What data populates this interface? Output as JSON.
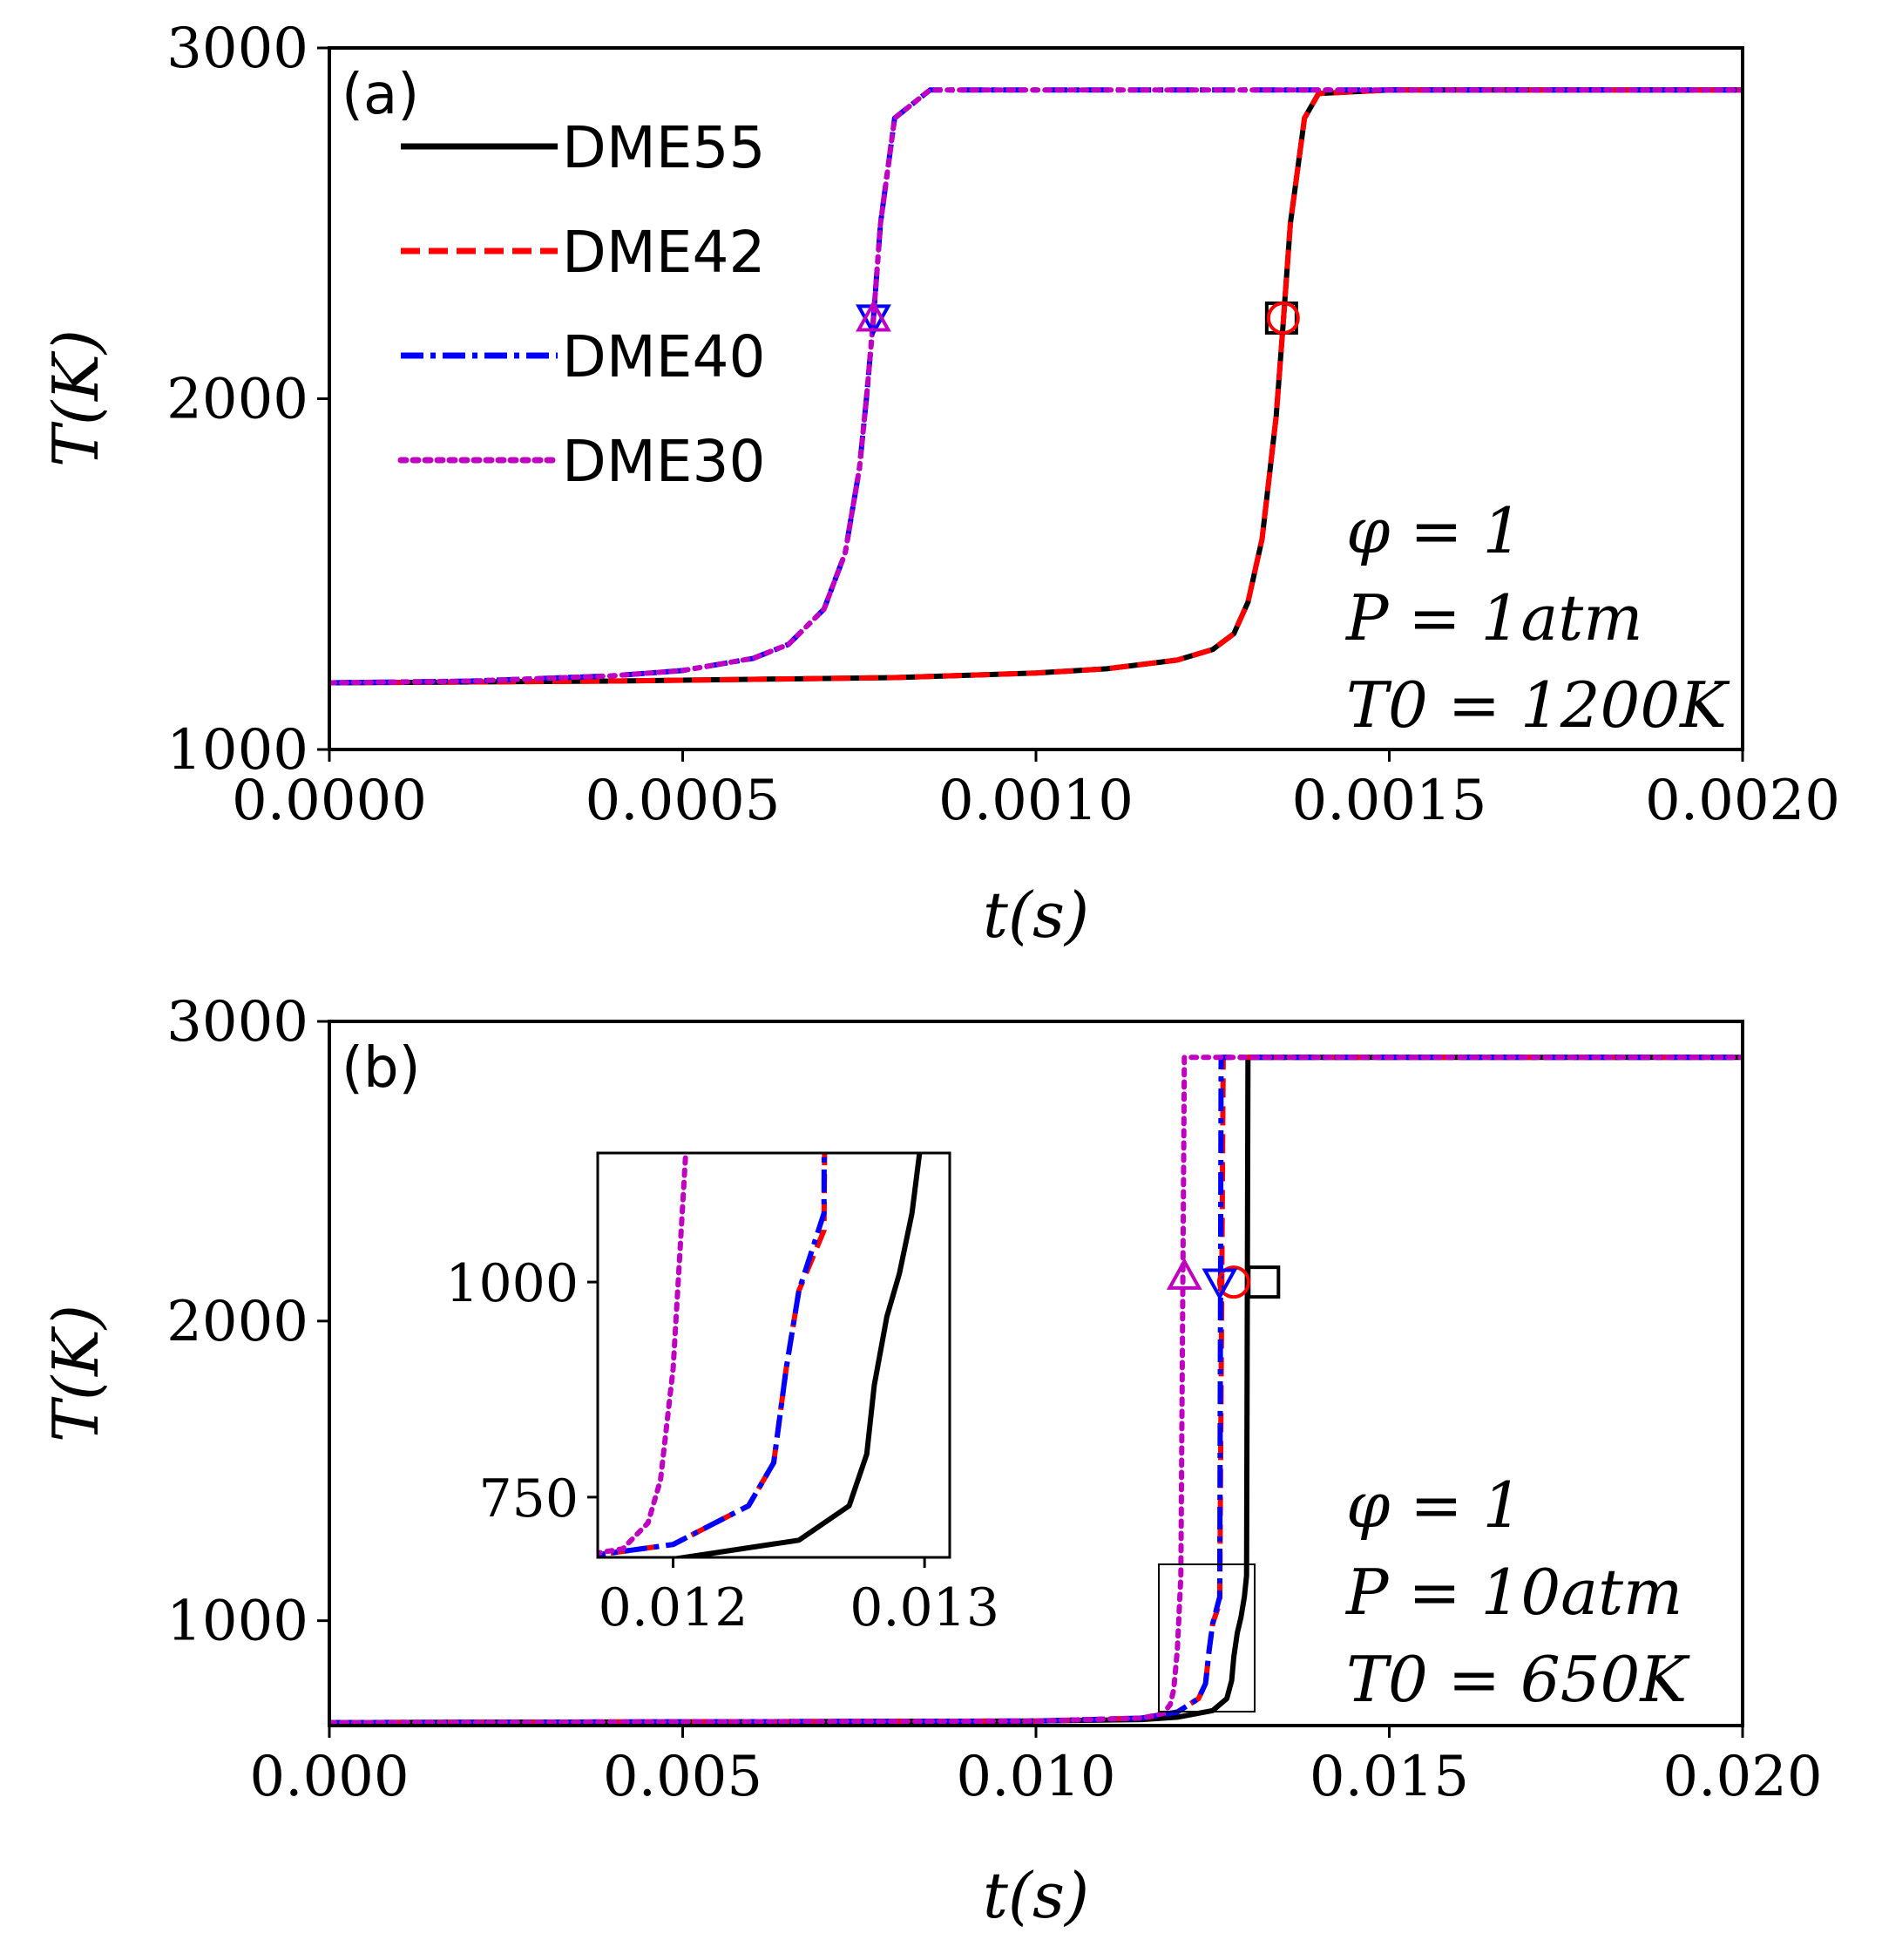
{
  "chart_data": [
    {
      "panel": "(a)",
      "type": "line",
      "xlabel": "t(s)",
      "ylabel": "T(K)",
      "xlim": [
        0,
        0.002
      ],
      "ylim": [
        1000,
        3000
      ],
      "xticks": [
        "0.0000",
        "0.0005",
        "0.0010",
        "0.0015",
        "0.0020"
      ],
      "yticks": [
        "1000",
        "2000",
        "3000"
      ],
      "legend": "top-left",
      "conditions": [
        "φ = 1",
        "P = 1atm",
        "T0 = 1200K"
      ],
      "series": [
        {
          "name": "DME55",
          "color": "#000000",
          "style": "solid",
          "x": [
            0,
            0.0004,
            0.0008,
            0.001,
            0.0011,
            0.0012,
            0.00125,
            0.00128,
            0.0013,
            0.00132,
            0.00134,
            0.00135,
            0.00136,
            0.00138,
            0.0014,
            0.0015,
            0.002
          ],
          "y": [
            1190,
            1195,
            1205,
            1218,
            1230,
            1255,
            1285,
            1330,
            1420,
            1600,
            1950,
            2220,
            2500,
            2800,
            2870,
            2880,
            2880
          ],
          "marker": {
            "symbol": "square",
            "x": 0.00135,
            "y": 2230
          }
        },
        {
          "name": "DME42",
          "color": "#ff0000",
          "style": "dashed",
          "x": [
            0,
            0.0004,
            0.0008,
            0.001,
            0.0011,
            0.0012,
            0.00125,
            0.00128,
            0.0013,
            0.00132,
            0.00134,
            0.00135,
            0.00136,
            0.00138,
            0.0014,
            0.0015,
            0.002
          ],
          "y": [
            1190,
            1195,
            1205,
            1218,
            1230,
            1255,
            1285,
            1330,
            1420,
            1600,
            1950,
            2220,
            2500,
            2800,
            2870,
            2880,
            2880
          ],
          "marker": {
            "symbol": "circle",
            "x": 0.00135,
            "y": 2230
          }
        },
        {
          "name": "DME40",
          "color": "#0000ff",
          "style": "dashdot",
          "x": [
            0,
            0.0002,
            0.0004,
            0.0005,
            0.0006,
            0.00065,
            0.0007,
            0.00073,
            0.00075,
            0.00076,
            0.00077,
            0.00078,
            0.0008,
            0.00085,
            0.001,
            0.002
          ],
          "y": [
            1190,
            1195,
            1210,
            1225,
            1260,
            1300,
            1400,
            1560,
            1800,
            2000,
            2230,
            2500,
            2800,
            2880,
            2880,
            2880
          ],
          "marker": {
            "symbol": "triangle-down",
            "x": 0.00077,
            "y": 2230
          }
        },
        {
          "name": "DME30",
          "color": "#c000c0",
          "style": "dotted",
          "x": [
            0,
            0.0002,
            0.0004,
            0.0005,
            0.0006,
            0.00065,
            0.0007,
            0.00073,
            0.00075,
            0.00076,
            0.00077,
            0.00078,
            0.0008,
            0.00085,
            0.001,
            0.002
          ],
          "y": [
            1190,
            1195,
            1210,
            1225,
            1260,
            1300,
            1400,
            1560,
            1800,
            2000,
            2230,
            2500,
            2800,
            2880,
            2880,
            2880
          ],
          "marker": {
            "symbol": "triangle-up",
            "x": 0.00077,
            "y": 2230
          }
        }
      ]
    },
    {
      "panel": "(b)",
      "type": "line",
      "xlabel": "t(s)",
      "ylabel": "T(K)",
      "xlim": [
        0,
        0.02
      ],
      "ylim": [
        650,
        3000
      ],
      "xticks": [
        "0.000",
        "0.005",
        "0.010",
        "0.015",
        "0.020"
      ],
      "yticks": [
        "1000",
        "2000",
        "3000"
      ],
      "conditions": [
        "φ = 1",
        "P = 10atm",
        "T0 = 650K"
      ],
      "series": [
        {
          "name": "DME55",
          "color": "#000000",
          "style": "solid",
          "x": [
            0,
            0.01,
            0.0115,
            0.012,
            0.0125,
            0.0127,
            0.01277,
            0.0128,
            0.01285,
            0.0129,
            0.01295,
            0.01298,
            0.013,
            0.02
          ],
          "y": [
            660,
            665,
            670,
            678,
            700,
            740,
            800,
            880,
            960,
            1010,
            1080,
            1150,
            2880,
            2880
          ],
          "marker": {
            "symbol": "square",
            "x": 0.013,
            "y": 2130
          }
        },
        {
          "name": "DME42",
          "color": "#ff0000",
          "style": "dashed",
          "x": [
            0,
            0.01,
            0.0115,
            0.012,
            0.0123,
            0.0124,
            0.01245,
            0.0125,
            0.0126,
            0.01265,
            0.02
          ],
          "y": [
            660,
            665,
            675,
            695,
            740,
            790,
            900,
            990,
            1060,
            2880,
            2880
          ],
          "marker": {
            "symbol": "circle",
            "x": 0.01265,
            "y": 2130
          }
        },
        {
          "name": "DME40",
          "color": "#0000ff",
          "style": "dashdot",
          "x": [
            0,
            0.01,
            0.0115,
            0.012,
            0.0123,
            0.0124,
            0.01245,
            0.0125,
            0.0126,
            0.01262,
            0.02
          ],
          "y": [
            660,
            665,
            675,
            695,
            740,
            790,
            900,
            990,
            1080,
            2880,
            2880
          ],
          "marker": {
            "symbol": "triangle-down",
            "x": 0.0126,
            "y": 2130
          }
        },
        {
          "name": "DME30",
          "color": "#c000c0",
          "style": "dotted",
          "x": [
            0,
            0.01,
            0.0115,
            0.0118,
            0.0119,
            0.01195,
            0.012,
            0.01205,
            0.0121,
            0.02
          ],
          "y": [
            660,
            665,
            675,
            690,
            720,
            770,
            900,
            1150,
            2880,
            2880
          ],
          "marker": {
            "symbol": "triangle-up",
            "x": 0.0121,
            "y": 2150
          }
        }
      ],
      "inset": {
        "xlim": [
          0.0117,
          0.0131
        ],
        "ylim": [
          680,
          1150
        ],
        "xticks": [
          "0.012",
          "0.013"
        ],
        "yticks": [
          "750",
          "1000"
        ]
      }
    }
  ]
}
